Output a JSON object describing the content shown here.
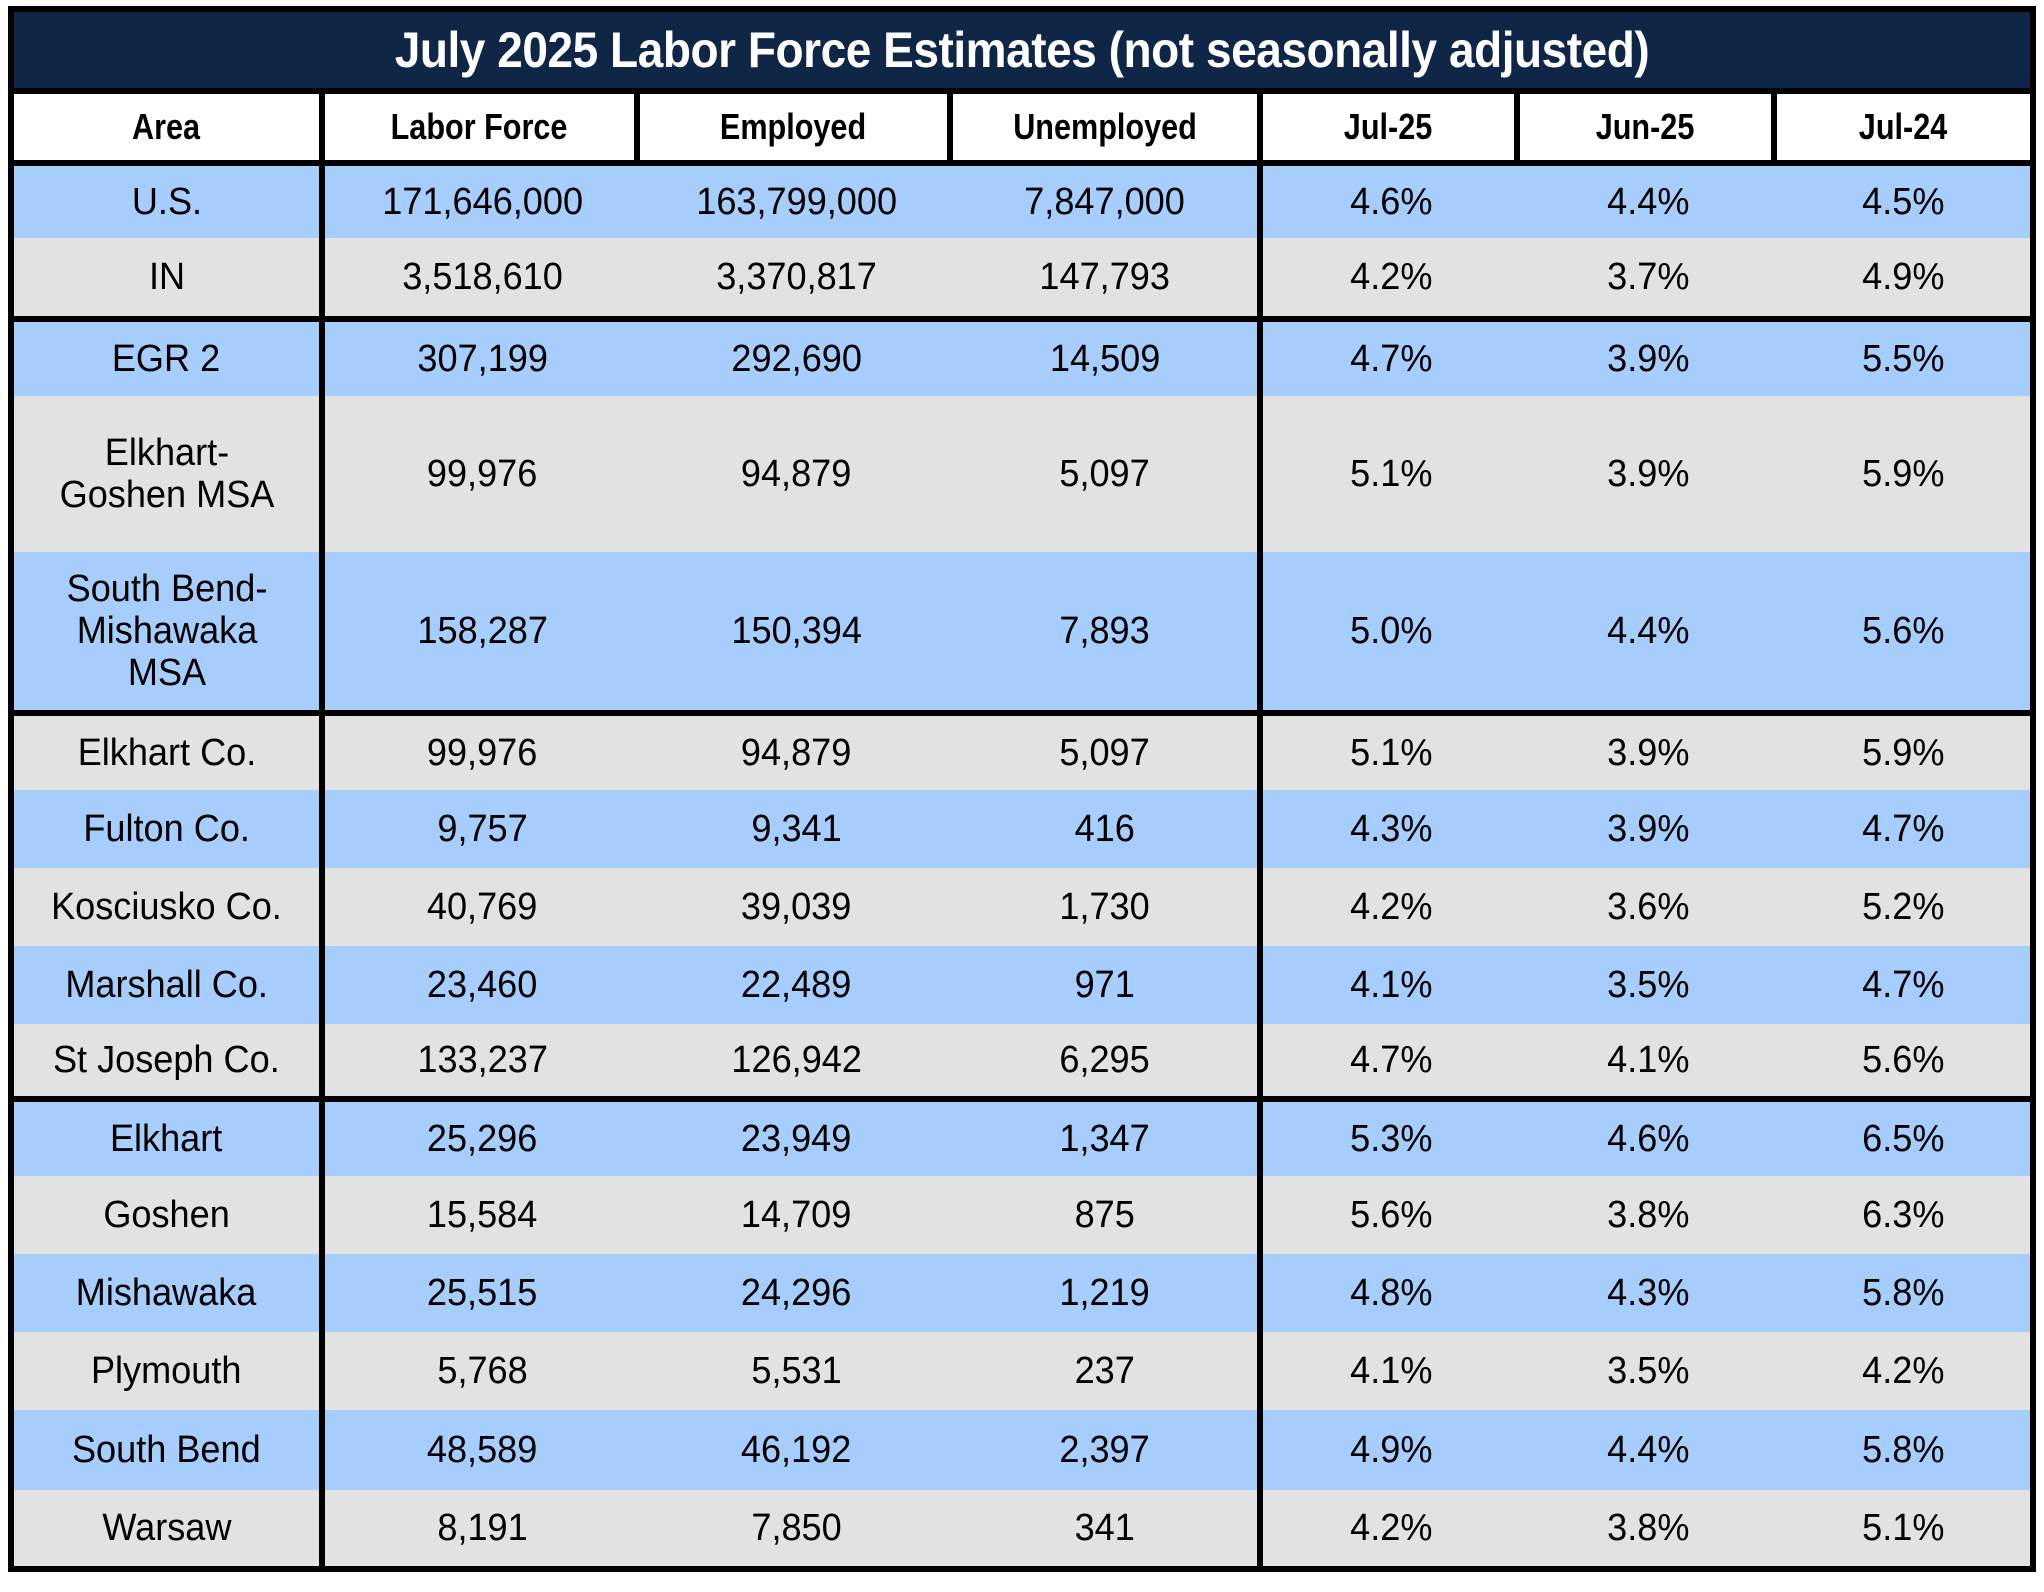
{
  "title": "July 2025 Labor Force Estimates (not seasonally adjusted)",
  "colors": {
    "title_bg": "#0f2646",
    "row_blue": "#a6cdfc",
    "row_grey": "#e2e2e2",
    "border": "#000000"
  },
  "columns": [
    "Area",
    "Labor Force",
    "Employed",
    "Unemployed",
    "Jul-25",
    "Jun-25",
    "Jul-24"
  ],
  "rows": [
    {
      "area": "U.S.",
      "labor_force": "171,646,000",
      "employed": "163,799,000",
      "unemployed": "7,847,000",
      "jul25": "4.6%",
      "jun25": "4.4%",
      "jul24": "4.5%"
    },
    {
      "area": "IN",
      "labor_force": "3,518,610",
      "employed": "3,370,817",
      "unemployed": "147,793",
      "jul25": "4.2%",
      "jun25": "3.7%",
      "jul24": "4.9%"
    },
    {
      "area": "EGR 2",
      "labor_force": "307,199",
      "employed": "292,690",
      "unemployed": "14,509",
      "jul25": "4.7%",
      "jun25": "3.9%",
      "jul24": "5.5%"
    },
    {
      "area": "Elkhart-Goshen MSA",
      "labor_force": "99,976",
      "employed": "94,879",
      "unemployed": "5,097",
      "jul25": "5.1%",
      "jun25": "3.9%",
      "jul24": "5.9%"
    },
    {
      "area": "South Bend-Mishawaka MSA",
      "labor_force": "158,287",
      "employed": "150,394",
      "unemployed": "7,893",
      "jul25": "5.0%",
      "jun25": "4.4%",
      "jul24": "5.6%"
    },
    {
      "area": "Elkhart Co.",
      "labor_force": "99,976",
      "employed": "94,879",
      "unemployed": "5,097",
      "jul25": "5.1%",
      "jun25": "3.9%",
      "jul24": "5.9%"
    },
    {
      "area": "Fulton Co.",
      "labor_force": "9,757",
      "employed": "9,341",
      "unemployed": "416",
      "jul25": "4.3%",
      "jun25": "3.9%",
      "jul24": "4.7%"
    },
    {
      "area": "Kosciusko Co.",
      "labor_force": "40,769",
      "employed": "39,039",
      "unemployed": "1,730",
      "jul25": "4.2%",
      "jun25": "3.6%",
      "jul24": "5.2%"
    },
    {
      "area": "Marshall Co.",
      "labor_force": "23,460",
      "employed": "22,489",
      "unemployed": "971",
      "jul25": "4.1%",
      "jun25": "3.5%",
      "jul24": "4.7%"
    },
    {
      "area": "St Joseph Co.",
      "labor_force": "133,237",
      "employed": "126,942",
      "unemployed": "6,295",
      "jul25": "4.7%",
      "jun25": "4.1%",
      "jul24": "5.6%"
    },
    {
      "area": "Elkhart",
      "labor_force": "25,296",
      "employed": "23,949",
      "unemployed": "1,347",
      "jul25": "5.3%",
      "jun25": "4.6%",
      "jul24": "6.5%"
    },
    {
      "area": "Goshen",
      "labor_force": "15,584",
      "employed": "14,709",
      "unemployed": "875",
      "jul25": "5.6%",
      "jun25": "3.8%",
      "jul24": "6.3%"
    },
    {
      "area": "Mishawaka",
      "labor_force": "25,515",
      "employed": "24,296",
      "unemployed": "1,219",
      "jul25": "4.8%",
      "jun25": "4.3%",
      "jul24": "5.8%"
    },
    {
      "area": "Plymouth",
      "labor_force": "5,768",
      "employed": "5,531",
      "unemployed": "237",
      "jul25": "4.1%",
      "jun25": "3.5%",
      "jul24": "4.2%"
    },
    {
      "area": "South Bend",
      "labor_force": "48,589",
      "employed": "46,192",
      "unemployed": "2,397",
      "jul25": "4.9%",
      "jun25": "4.4%",
      "jul24": "5.8%"
    },
    {
      "area": "Warsaw",
      "labor_force": "8,191",
      "employed": "7,850",
      "unemployed": "341",
      "jul25": "4.2%",
      "jun25": "3.8%",
      "jul24": "5.1%"
    }
  ]
}
